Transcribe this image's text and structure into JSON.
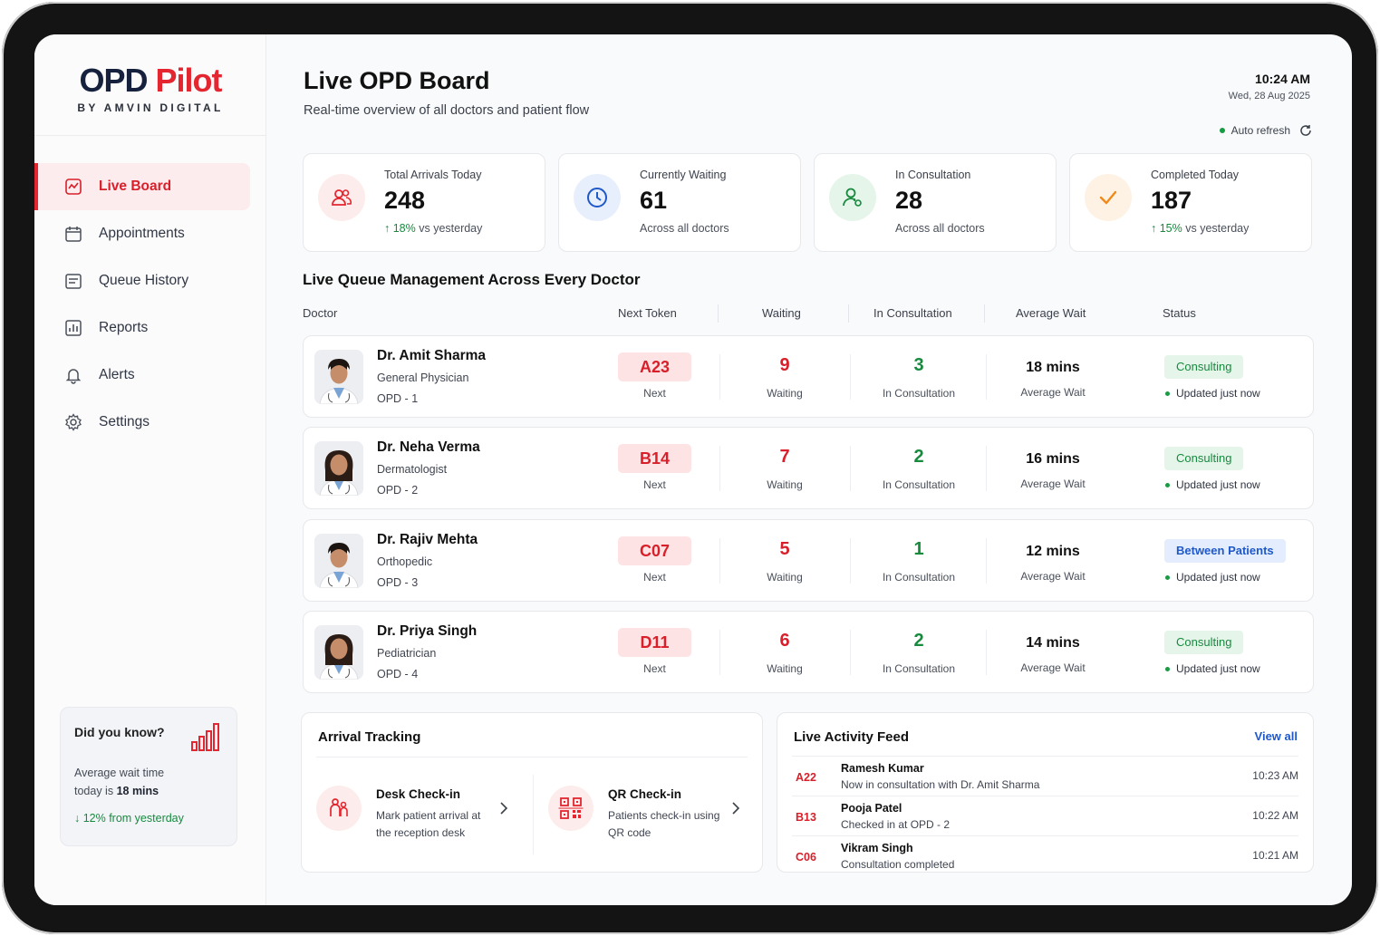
{
  "brand": {
    "name_part1": "OPD",
    "name_part2": "Pilot",
    "tagline": "BY AMVIN DIGITAL"
  },
  "sidebar": {
    "items": [
      {
        "label": "Live Board",
        "icon": "board-icon",
        "active": true
      },
      {
        "label": "Appointments",
        "icon": "calendar-icon"
      },
      {
        "label": "Queue History",
        "icon": "history-icon"
      },
      {
        "label": "Reports",
        "icon": "reports-icon"
      },
      {
        "label": "Alerts",
        "icon": "bell-icon"
      },
      {
        "label": "Settings",
        "icon": "gear-icon"
      }
    ],
    "tip": {
      "title": "Did you know?",
      "body_prefix": "Average wait time today is ",
      "body_value": "18 mins",
      "trend": "↓ 12% from yesterday"
    }
  },
  "header": {
    "title": "Live OPD Board",
    "subtitle": "Real-time overview of all doctors and patient flow",
    "time": "10:24 AM",
    "date": "Wed, 28 Aug 2025",
    "auto_refresh": "Auto refresh"
  },
  "stats": [
    {
      "label": "Total Arrivals Today",
      "value": "248",
      "trend": "↑ 18%",
      "sub": " vs yesterday",
      "icon": "users-icon",
      "color": "#e3262f",
      "bg": "#fdecec"
    },
    {
      "label": "Currently Waiting",
      "value": "61",
      "trend": "",
      "sub": "Across all doctors",
      "icon": "clock-icon",
      "color": "#1f59c9",
      "bg": "#e8effc"
    },
    {
      "label": "In Consultation",
      "value": "28",
      "trend": "",
      "sub": "Across all doctors",
      "icon": "doctor-icon",
      "color": "#178a3e",
      "bg": "#e5f5ea"
    },
    {
      "label": "Completed Today",
      "value": "187",
      "trend": "↑ 15%",
      "sub": " vs yesterday",
      "icon": "check-icon",
      "color": "#ef8a1a",
      "bg": "#fdf2e4"
    }
  ],
  "queue": {
    "title": "Live Queue Management Across Every Doctor",
    "columns": [
      "Doctor",
      "Next Token",
      "Waiting",
      "In Consultation",
      "Average Wait",
      "Status"
    ],
    "labels": {
      "next": "Next",
      "waiting": "Waiting",
      "in_consultation": "In Consultation",
      "average_wait": "Average Wait",
      "updated": "Updated just now"
    },
    "rows": [
      {
        "name": "Dr. Amit Sharma",
        "specialty": "General Physician",
        "opd": "OPD - 1",
        "token": "A23",
        "waiting": "9",
        "consultation": "3",
        "avg_wait": "18 mins",
        "status": "Consulting",
        "status_type": "consulting",
        "gender": "m"
      },
      {
        "name": "Dr. Neha Verma",
        "specialty": "Dermatologist",
        "opd": "OPD - 2",
        "token": "B14",
        "waiting": "7",
        "consultation": "2",
        "avg_wait": "16 mins",
        "status": "Consulting",
        "status_type": "consulting",
        "gender": "f"
      },
      {
        "name": "Dr. Rajiv Mehta",
        "specialty": "Orthopedic",
        "opd": "OPD - 3",
        "token": "C07",
        "waiting": "5",
        "consultation": "1",
        "avg_wait": "12 mins",
        "status": "Between Patients",
        "status_type": "between",
        "gender": "m"
      },
      {
        "name": "Dr. Priya Singh",
        "specialty": "Pediatrician",
        "opd": "OPD - 4",
        "token": "D11",
        "waiting": "6",
        "consultation": "2",
        "avg_wait": "14 mins",
        "status": "Consulting",
        "status_type": "consulting",
        "gender": "f"
      }
    ]
  },
  "arrival": {
    "title": "Arrival Tracking",
    "desk": {
      "title": "Desk Check-in",
      "desc": "Mark patient arrival at the reception desk"
    },
    "qr": {
      "title": "QR Check-in",
      "desc": "Patients check-in using QR code"
    }
  },
  "feed": {
    "title": "Live Activity Feed",
    "view_all": "View all",
    "items": [
      {
        "token": "A22",
        "name": "Ramesh Kumar",
        "desc": "Now in consultation with Dr. Amit Sharma",
        "time": "10:23 AM"
      },
      {
        "token": "B13",
        "name": "Pooja Patel",
        "desc": "Checked in at OPD - 2",
        "time": "10:22 AM"
      },
      {
        "token": "C06",
        "name": "Vikram Singh",
        "desc": "Consultation completed",
        "time": "10:21 AM"
      }
    ]
  }
}
